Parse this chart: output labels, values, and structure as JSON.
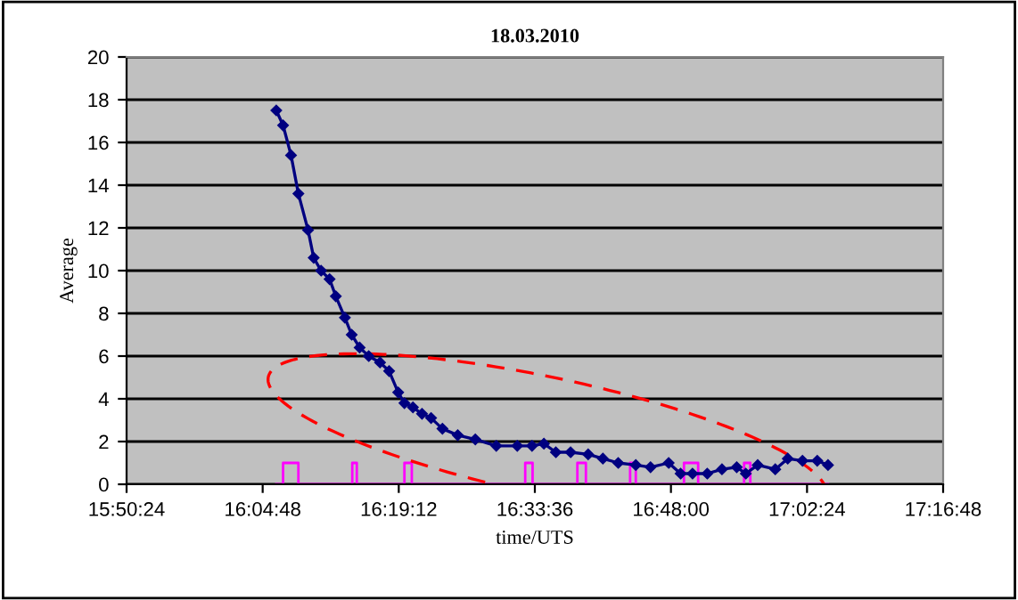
{
  "chart_data": {
    "type": "line",
    "title": "18.03.2010",
    "xlabel": "time/UTS",
    "ylabel": "Average",
    "grid": "y",
    "xlim": [
      15.84,
      17.28
    ],
    "xticks": [
      {
        "value": 15.84,
        "label": "15:50:24"
      },
      {
        "value": 16.08,
        "label": "16:04:48"
      },
      {
        "value": 16.32,
        "label": "16:19:12"
      },
      {
        "value": 16.56,
        "label": "16:33:36"
      },
      {
        "value": 16.8,
        "label": "16:48:00"
      },
      {
        "value": 17.04,
        "label": "17:02:24"
      },
      {
        "value": 17.28,
        "label": "17:16:48"
      }
    ],
    "ylim": [
      0,
      20
    ],
    "yticks": [
      0,
      2,
      4,
      6,
      8,
      10,
      12,
      14,
      16,
      18,
      20
    ],
    "series": [
      {
        "color": "#000080",
        "marker": "diamond",
        "x": [
          16.104,
          16.116,
          16.13,
          16.143,
          16.16,
          16.17,
          16.183,
          16.198,
          16.209,
          16.225,
          16.237,
          16.251,
          16.267,
          16.287,
          16.303,
          16.319,
          16.33,
          16.345,
          16.361,
          16.377,
          16.397,
          16.424,
          16.455,
          16.492,
          16.529,
          16.555,
          16.576,
          16.597,
          16.623,
          16.654,
          16.68,
          16.707,
          16.738,
          16.764,
          16.796,
          16.817,
          16.838,
          16.864,
          16.89,
          16.916,
          16.932,
          16.953,
          16.984,
          17.006,
          17.032,
          17.058,
          17.077
        ],
        "values": [
          17.5,
          16.8,
          15.4,
          13.6,
          11.9,
          10.6,
          10.0,
          9.6,
          8.8,
          7.8,
          7.0,
          6.4,
          6.0,
          5.7,
          5.3,
          4.3,
          3.8,
          3.6,
          3.3,
          3.1,
          2.6,
          2.3,
          2.1,
          1.8,
          1.8,
          1.8,
          1.9,
          1.5,
          1.5,
          1.4,
          1.2,
          1.0,
          0.9,
          0.8,
          1.0,
          0.5,
          0.5,
          0.5,
          0.7,
          0.8,
          0.5,
          0.9,
          0.7,
          1.2,
          1.1,
          1.1,
          0.9
        ]
      },
      {
        "type": "step",
        "color": "#ff00ff",
        "x": [
          16.104,
          16.116,
          16.143,
          16.238,
          16.246,
          16.33,
          16.343,
          16.543,
          16.556,
          16.635,
          16.65,
          16.728,
          16.738,
          16.823,
          16.848,
          16.929,
          16.94,
          17.077
        ],
        "values": [
          0,
          1,
          0,
          1,
          0,
          1,
          0,
          1,
          0,
          1,
          0,
          1,
          0,
          1,
          0,
          1,
          0,
          0
        ]
      }
    ]
  }
}
